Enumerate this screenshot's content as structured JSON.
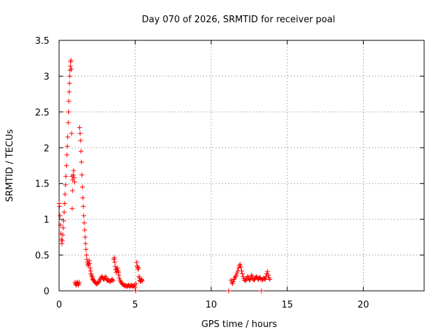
{
  "chart_data": {
    "type": "scatter",
    "title": "Day 070 of 2026, SRMTID for receiver poal",
    "xlabel": "GPS time / hours",
    "ylabel": "SRMTID / TECUs",
    "xlim": [
      0,
      24
    ],
    "ylim": [
      0,
      3.5
    ],
    "xticks": [
      0,
      5,
      10,
      15,
      20
    ],
    "yticks": [
      0,
      0.5,
      1,
      1.5,
      2,
      2.5,
      3,
      3.5
    ],
    "xtick_labels": [
      "0",
      "5",
      "10",
      "15",
      "20"
    ],
    "ytick_labels": [
      "0",
      "0.5",
      "1",
      "1.5",
      "2",
      "2.5",
      "3",
      "3.5"
    ],
    "grid": true,
    "marker": "+",
    "color": "#ff0000",
    "series": [
      {
        "name": "SRMTID",
        "points": [
          [
            0.0,
            1.22
          ],
          [
            0.03,
            1.18
          ],
          [
            0.06,
            1.05
          ],
          [
            0.09,
            0.92
          ],
          [
            0.12,
            0.8
          ],
          [
            0.15,
            0.72
          ],
          [
            0.18,
            0.66
          ],
          [
            0.21,
            0.7
          ],
          [
            0.24,
            0.78
          ],
          [
            0.27,
            0.88
          ],
          [
            0.3,
            0.98
          ],
          [
            0.33,
            1.1
          ],
          [
            0.36,
            1.22
          ],
          [
            0.39,
            1.35
          ],
          [
            0.42,
            1.48
          ],
          [
            0.45,
            1.6
          ],
          [
            0.48,
            1.75
          ],
          [
            0.51,
            1.9
          ],
          [
            0.54,
            2.02
          ],
          [
            0.57,
            2.15
          ],
          [
            0.6,
            2.35
          ],
          [
            0.62,
            2.5
          ],
          [
            0.64,
            2.65
          ],
          [
            0.66,
            2.78
          ],
          [
            0.68,
            2.9
          ],
          [
            0.7,
            3.0
          ],
          [
            0.72,
            3.08
          ],
          [
            0.74,
            3.14
          ],
          [
            0.76,
            3.2
          ],
          [
            0.78,
            3.22
          ],
          [
            0.8,
            3.1
          ],
          [
            0.82,
            2.2
          ],
          [
            0.84,
            1.6
          ],
          [
            0.86,
            1.15
          ],
          [
            0.88,
            1.4
          ],
          [
            0.9,
            1.55
          ],
          [
            0.93,
            1.62
          ],
          [
            0.96,
            1.68
          ],
          [
            0.99,
            1.58
          ],
          [
            1.02,
            1.52
          ],
          [
            1.05,
            0.12
          ],
          [
            1.08,
            0.1
          ],
          [
            1.11,
            0.08
          ],
          [
            1.14,
            0.09
          ],
          [
            1.17,
            0.11
          ],
          [
            1.2,
            0.12
          ],
          [
            1.23,
            0.1
          ],
          [
            1.26,
            0.08
          ],
          [
            1.29,
            0.1
          ],
          [
            1.32,
            0.12
          ],
          [
            1.35,
            2.28
          ],
          [
            1.38,
            2.2
          ],
          [
            1.41,
            2.1
          ],
          [
            1.44,
            1.95
          ],
          [
            1.47,
            1.8
          ],
          [
            1.5,
            1.62
          ],
          [
            1.53,
            1.45
          ],
          [
            1.56,
            1.3
          ],
          [
            1.59,
            1.18
          ],
          [
            1.62,
            1.05
          ],
          [
            1.65,
            0.95
          ],
          [
            1.68,
            0.85
          ],
          [
            1.71,
            0.75
          ],
          [
            1.74,
            0.66
          ],
          [
            1.77,
            0.58
          ],
          [
            1.8,
            0.5
          ],
          [
            1.83,
            0.44
          ],
          [
            1.86,
            0.4
          ],
          [
            1.89,
            0.37
          ],
          [
            1.92,
            0.35
          ],
          [
            1.95,
            0.38
          ],
          [
            1.98,
            0.42
          ],
          [
            2.01,
            0.38
          ],
          [
            2.04,
            0.32
          ],
          [
            2.07,
            0.28
          ],
          [
            2.1,
            0.24
          ],
          [
            2.13,
            0.22
          ],
          [
            2.16,
            0.2
          ],
          [
            2.19,
            0.18
          ],
          [
            2.22,
            0.16
          ],
          [
            2.25,
            0.15
          ],
          [
            2.3,
            0.14
          ],
          [
            2.35,
            0.12
          ],
          [
            2.4,
            0.11
          ],
          [
            2.45,
            0.1
          ],
          [
            2.5,
            0.1
          ],
          [
            2.55,
            0.11
          ],
          [
            2.6,
            0.12
          ],
          [
            2.65,
            0.14
          ],
          [
            2.7,
            0.16
          ],
          [
            2.75,
            0.18
          ],
          [
            2.8,
            0.2
          ],
          [
            2.85,
            0.19
          ],
          [
            2.9,
            0.17
          ],
          [
            2.95,
            0.16
          ],
          [
            3.0,
            0.18
          ],
          [
            3.05,
            0.2
          ],
          [
            3.1,
            0.18
          ],
          [
            3.15,
            0.15
          ],
          [
            3.2,
            0.14
          ],
          [
            3.25,
            0.15
          ],
          [
            3.3,
            0.14
          ],
          [
            3.35,
            0.13
          ],
          [
            3.4,
            0.14
          ],
          [
            3.45,
            0.15
          ],
          [
            3.5,
            0.16
          ],
          [
            3.55,
            0.14
          ],
          [
            3.6,
            0.44
          ],
          [
            3.63,
            0.46
          ],
          [
            3.66,
            0.4
          ],
          [
            3.69,
            0.34
          ],
          [
            3.72,
            0.3
          ],
          [
            3.75,
            0.26
          ],
          [
            3.78,
            0.3
          ],
          [
            3.81,
            0.28
          ],
          [
            3.84,
            0.32
          ],
          [
            3.87,
            0.28
          ],
          [
            3.9,
            0.26
          ],
          [
            3.93,
            0.22
          ],
          [
            3.96,
            0.18
          ],
          [
            4.0,
            0.15
          ],
          [
            4.05,
            0.13
          ],
          [
            4.1,
            0.11
          ],
          [
            4.15,
            0.1
          ],
          [
            4.2,
            0.09
          ],
          [
            4.25,
            0.08
          ],
          [
            4.3,
            0.07
          ],
          [
            4.35,
            0.08
          ],
          [
            4.4,
            0.07
          ],
          [
            4.45,
            0.06
          ],
          [
            4.5,
            0.07
          ],
          [
            4.55,
            0.08
          ],
          [
            4.6,
            0.07
          ],
          [
            4.65,
            0.06
          ],
          [
            4.7,
            0.07
          ],
          [
            4.75,
            0.08
          ],
          [
            4.8,
            0.07
          ],
          [
            4.85,
            0.06
          ],
          [
            4.9,
            0.07
          ],
          [
            4.95,
            0.08
          ],
          [
            5.0,
            0.05
          ],
          [
            5.03,
            0.0
          ],
          [
            5.06,
            0.1
          ],
          [
            5.1,
            0.4
          ],
          [
            5.13,
            0.35
          ],
          [
            5.16,
            0.33
          ],
          [
            5.19,
            0.3
          ],
          [
            5.22,
            0.32
          ],
          [
            5.25,
            0.2
          ],
          [
            5.28,
            0.18
          ],
          [
            5.31,
            0.15
          ],
          [
            5.34,
            0.14
          ],
          [
            5.37,
            0.13
          ],
          [
            5.4,
            0.15
          ],
          [
            5.43,
            0.16
          ],
          [
            5.46,
            0.14
          ],
          [
            11.15,
            0.0
          ],
          [
            11.3,
            0.15
          ],
          [
            11.35,
            0.12
          ],
          [
            11.4,
            0.1
          ],
          [
            11.45,
            0.13
          ],
          [
            11.5,
            0.16
          ],
          [
            11.55,
            0.18
          ],
          [
            11.6,
            0.2
          ],
          [
            11.65,
            0.22
          ],
          [
            11.7,
            0.25
          ],
          [
            11.75,
            0.28
          ],
          [
            11.8,
            0.32
          ],
          [
            11.85,
            0.35
          ],
          [
            11.9,
            0.37
          ],
          [
            11.95,
            0.33
          ],
          [
            12.0,
            0.28
          ],
          [
            12.05,
            0.24
          ],
          [
            12.1,
            0.2
          ],
          [
            12.15,
            0.17
          ],
          [
            12.2,
            0.15
          ],
          [
            12.25,
            0.14
          ],
          [
            12.3,
            0.16
          ],
          [
            12.35,
            0.18
          ],
          [
            12.4,
            0.2
          ],
          [
            12.45,
            0.18
          ],
          [
            12.5,
            0.16
          ],
          [
            12.55,
            0.15
          ],
          [
            12.6,
            0.18
          ],
          [
            12.65,
            0.22
          ],
          [
            12.7,
            0.2
          ],
          [
            12.75,
            0.17
          ],
          [
            12.8,
            0.15
          ],
          [
            12.85,
            0.16
          ],
          [
            12.9,
            0.18
          ],
          [
            12.95,
            0.2
          ],
          [
            13.0,
            0.19
          ],
          [
            13.05,
            0.17
          ],
          [
            13.1,
            0.16
          ],
          [
            13.15,
            0.18
          ],
          [
            13.2,
            0.19
          ],
          [
            13.25,
            0.17
          ],
          [
            13.3,
            0.0
          ],
          [
            13.35,
            0.15
          ],
          [
            13.4,
            0.16
          ],
          [
            13.45,
            0.18
          ],
          [
            13.5,
            0.17
          ],
          [
            13.55,
            0.16
          ],
          [
            13.6,
            0.2
          ],
          [
            13.65,
            0.24
          ],
          [
            13.7,
            0.27
          ],
          [
            13.75,
            0.22
          ],
          [
            13.8,
            0.18
          ],
          [
            13.85,
            0.16
          ]
        ]
      }
    ]
  }
}
